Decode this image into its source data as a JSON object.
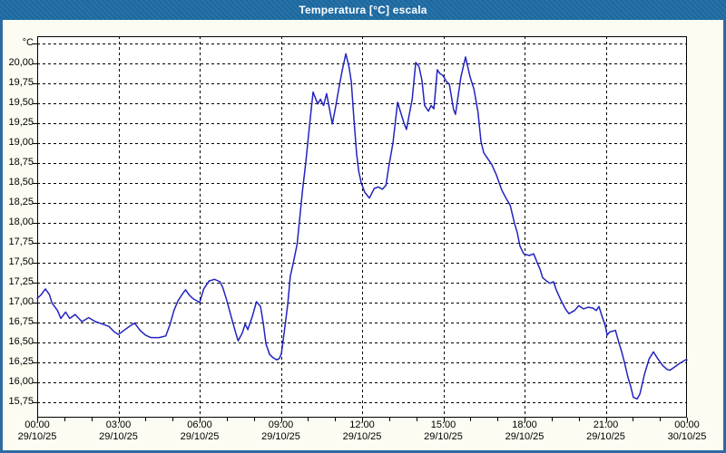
{
  "window": {
    "title": "Temperatura [°C] escala"
  },
  "colors": {
    "titlebar": "#1d6ba3",
    "window_border": "#2e6ba2",
    "content_bg": "#fcfcf2",
    "plot_bg": "#ffffff",
    "grid": "#000000",
    "line": "#2323c0",
    "label": "#000000",
    "title_text": "#ffffff"
  },
  "chart_data": {
    "type": "line",
    "title": "Temperatura [°C] escala",
    "xlabel": "",
    "ylabel": "°C",
    "grid": "dashed",
    "legend": "none",
    "y_axis": {
      "unit": "°C",
      "label_max": 20.0,
      "label_min": 15.75,
      "step": 0.25,
      "grid_top": 20.25,
      "axis_max": 20.34,
      "axis_min": 15.555,
      "ylim": [
        15.555,
        20.34
      ],
      "decimal_separator": ",",
      "labels": [
        "20,00",
        "19,75",
        "19,50",
        "19,25",
        "19,00",
        "18,75",
        "18,50",
        "18,25",
        "18,00",
        "17,75",
        "17,50",
        "17,25",
        "17,00",
        "16,75",
        "16,50",
        "16,25",
        "16,00",
        "15,75"
      ]
    },
    "x_axis": {
      "start_hour": 0,
      "end_hour": 24,
      "major_step_hours": 3,
      "minor_step_hours": 1,
      "tick_labels": [
        {
          "time": "00:00",
          "date": "29/10/25"
        },
        {
          "time": "03:00",
          "date": "29/10/25"
        },
        {
          "time": "06:00",
          "date": "29/10/25"
        },
        {
          "time": "09:00",
          "date": "29/10/25"
        },
        {
          "time": "12:00",
          "date": "29/10/25"
        },
        {
          "time": "15:00",
          "date": "29/10/25"
        },
        {
          "time": "18:00",
          "date": "29/10/25"
        },
        {
          "time": "21:00",
          "date": "29/10/25"
        },
        {
          "time": "00:00",
          "date": "30/10/25"
        }
      ]
    },
    "series": [
      {
        "name": "Temperatura",
        "color": "#2323c0",
        "points": [
          [
            0.0,
            17.05
          ],
          [
            0.15,
            17.1
          ],
          [
            0.3,
            17.17
          ],
          [
            0.45,
            17.1
          ],
          [
            0.55,
            16.99
          ],
          [
            0.75,
            16.9
          ],
          [
            0.87,
            16.8
          ],
          [
            1.05,
            16.88
          ],
          [
            1.2,
            16.8
          ],
          [
            1.4,
            16.85
          ],
          [
            1.65,
            16.76
          ],
          [
            1.9,
            16.81
          ],
          [
            2.15,
            16.76
          ],
          [
            2.4,
            16.73
          ],
          [
            2.65,
            16.7
          ],
          [
            2.85,
            16.63
          ],
          [
            3.0,
            16.6
          ],
          [
            3.2,
            16.65
          ],
          [
            3.45,
            16.71
          ],
          [
            3.6,
            16.74
          ],
          [
            3.8,
            16.65
          ],
          [
            4.0,
            16.59
          ],
          [
            4.2,
            16.56
          ],
          [
            4.5,
            16.56
          ],
          [
            4.75,
            16.58
          ],
          [
            4.9,
            16.72
          ],
          [
            5.05,
            16.9
          ],
          [
            5.2,
            17.02
          ],
          [
            5.35,
            17.1
          ],
          [
            5.48,
            17.16
          ],
          [
            5.6,
            17.1
          ],
          [
            5.75,
            17.05
          ],
          [
            5.9,
            17.02
          ],
          [
            6.0,
            17.0
          ],
          [
            6.15,
            17.17
          ],
          [
            6.35,
            17.27
          ],
          [
            6.55,
            17.29
          ],
          [
            6.75,
            17.26
          ],
          [
            6.85,
            17.19
          ],
          [
            7.0,
            17.03
          ],
          [
            7.15,
            16.84
          ],
          [
            7.33,
            16.62
          ],
          [
            7.42,
            16.52
          ],
          [
            7.58,
            16.62
          ],
          [
            7.68,
            16.73
          ],
          [
            7.78,
            16.66
          ],
          [
            7.95,
            16.83
          ],
          [
            8.1,
            17.01
          ],
          [
            8.25,
            16.95
          ],
          [
            8.35,
            16.74
          ],
          [
            8.45,
            16.48
          ],
          [
            8.58,
            16.35
          ],
          [
            8.7,
            16.31
          ],
          [
            8.85,
            16.28
          ],
          [
            8.95,
            16.3
          ],
          [
            9.02,
            16.36
          ],
          [
            9.12,
            16.62
          ],
          [
            9.25,
            16.97
          ],
          [
            9.35,
            17.33
          ],
          [
            9.45,
            17.48
          ],
          [
            9.6,
            17.73
          ],
          [
            9.7,
            18.07
          ],
          [
            9.8,
            18.41
          ],
          [
            9.92,
            18.75
          ],
          [
            10.02,
            19.09
          ],
          [
            10.09,
            19.32
          ],
          [
            10.19,
            19.64
          ],
          [
            10.36,
            19.49
          ],
          [
            10.46,
            19.55
          ],
          [
            10.58,
            19.47
          ],
          [
            10.69,
            19.62
          ],
          [
            10.9,
            19.24
          ],
          [
            11.03,
            19.47
          ],
          [
            11.13,
            19.66
          ],
          [
            11.26,
            19.9
          ],
          [
            11.4,
            20.12
          ],
          [
            11.52,
            19.95
          ],
          [
            11.6,
            19.77
          ],
          [
            11.7,
            19.3
          ],
          [
            11.8,
            18.86
          ],
          [
            11.88,
            18.64
          ],
          [
            11.97,
            18.5
          ],
          [
            12.1,
            18.38
          ],
          [
            12.27,
            18.31
          ],
          [
            12.45,
            18.43
          ],
          [
            12.6,
            18.45
          ],
          [
            12.75,
            18.42
          ],
          [
            12.88,
            18.47
          ],
          [
            12.98,
            18.69
          ],
          [
            13.14,
            19.0
          ],
          [
            13.31,
            19.51
          ],
          [
            13.54,
            19.26
          ],
          [
            13.64,
            19.17
          ],
          [
            13.85,
            19.55
          ],
          [
            13.98,
            20.01
          ],
          [
            14.1,
            19.96
          ],
          [
            14.21,
            19.79
          ],
          [
            14.31,
            19.47
          ],
          [
            14.45,
            19.4
          ],
          [
            14.55,
            19.47
          ],
          [
            14.65,
            19.43
          ],
          [
            14.78,
            19.92
          ],
          [
            14.88,
            19.87
          ],
          [
            14.98,
            19.85
          ],
          [
            15.12,
            19.77
          ],
          [
            15.22,
            19.74
          ],
          [
            15.38,
            19.42
          ],
          [
            15.45,
            19.36
          ],
          [
            15.65,
            19.83
          ],
          [
            15.82,
            20.08
          ],
          [
            15.99,
            19.83
          ],
          [
            16.13,
            19.68
          ],
          [
            16.28,
            19.39
          ],
          [
            16.39,
            19.02
          ],
          [
            16.49,
            18.88
          ],
          [
            16.63,
            18.81
          ],
          [
            16.79,
            18.73
          ],
          [
            16.96,
            18.6
          ],
          [
            17.16,
            18.41
          ],
          [
            17.33,
            18.3
          ],
          [
            17.47,
            18.22
          ],
          [
            17.63,
            17.99
          ],
          [
            17.73,
            17.88
          ],
          [
            17.83,
            17.71
          ],
          [
            17.97,
            17.61
          ],
          [
            18.17,
            17.59
          ],
          [
            18.34,
            17.61
          ],
          [
            18.47,
            17.5
          ],
          [
            18.57,
            17.42
          ],
          [
            18.67,
            17.31
          ],
          [
            18.81,
            17.27
          ],
          [
            18.94,
            17.24
          ],
          [
            19.07,
            17.26
          ],
          [
            19.17,
            17.16
          ],
          [
            19.34,
            17.03
          ],
          [
            19.51,
            16.92
          ],
          [
            19.64,
            16.86
          ],
          [
            19.85,
            16.9
          ],
          [
            20.0,
            16.96
          ],
          [
            20.18,
            16.92
          ],
          [
            20.35,
            16.94
          ],
          [
            20.52,
            16.93
          ],
          [
            20.65,
            16.9
          ],
          [
            20.75,
            16.95
          ],
          [
            20.85,
            16.84
          ],
          [
            20.99,
            16.7
          ],
          [
            21.05,
            16.59
          ],
          [
            21.15,
            16.63
          ],
          [
            21.36,
            16.65
          ],
          [
            21.49,
            16.49
          ],
          [
            21.59,
            16.38
          ],
          [
            21.69,
            16.25
          ],
          [
            21.82,
            16.06
          ],
          [
            21.92,
            15.95
          ],
          [
            22.02,
            15.81
          ],
          [
            22.16,
            15.79
          ],
          [
            22.26,
            15.85
          ],
          [
            22.43,
            16.1
          ],
          [
            22.6,
            16.29
          ],
          [
            22.76,
            16.38
          ],
          [
            22.93,
            16.29
          ],
          [
            23.1,
            16.21
          ],
          [
            23.27,
            16.16
          ],
          [
            23.37,
            16.15
          ],
          [
            23.54,
            16.19
          ],
          [
            23.7,
            16.23
          ],
          [
            23.94,
            16.28
          ],
          [
            24.0,
            16.28
          ]
        ]
      }
    ]
  }
}
